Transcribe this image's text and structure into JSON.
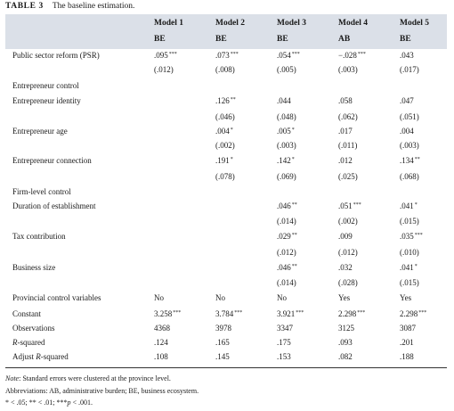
{
  "table": {
    "number": "TABLE 3",
    "title": "The baseline estimation.",
    "models": [
      "Model 1",
      "Model 2",
      "Model 3",
      "Model 4",
      "Model 5"
    ],
    "dep_vars": [
      "BE",
      "BE",
      "BE",
      "AB",
      "BE"
    ],
    "rows": [
      {
        "label": "Public sector reform (PSR)",
        "coef": [
          ".095",
          ".073",
          ".054",
          "−.028",
          ".043"
        ],
        "stars": [
          "***",
          "***",
          "***",
          "***",
          ""
        ],
        "se": [
          "(.012)",
          "(.008)",
          "(.005)",
          "(.003)",
          "(.017)"
        ]
      },
      {
        "label": "Entrepreneur control"
      },
      {
        "label": "Entrepreneur identity",
        "coef": [
          "",
          ".126",
          ".044",
          ".058",
          ".047"
        ],
        "stars": [
          "",
          "**",
          "",
          "",
          ""
        ],
        "se": [
          "",
          "(.046)",
          "(.048)",
          "(.062)",
          "(.051)"
        ]
      },
      {
        "label": "Entrepreneur age",
        "coef": [
          "",
          ".004",
          ".005",
          ".017",
          ".004"
        ],
        "stars": [
          "",
          "*",
          "*",
          "",
          ""
        ],
        "se": [
          "",
          "(.002)",
          "(.003)",
          "(.011)",
          "(.003)"
        ]
      },
      {
        "label": "Entrepreneur connection",
        "coef": [
          "",
          ".191",
          ".142",
          ".012",
          ".134"
        ],
        "stars": [
          "",
          "*",
          "*",
          "",
          "**"
        ],
        "se": [
          "",
          "(.078)",
          "(.069)",
          "(.025)",
          "(.068)"
        ]
      },
      {
        "label": "Firm-level control"
      },
      {
        "label": "Duration of establishment",
        "coef": [
          "",
          "",
          ".046",
          ".051",
          ".041"
        ],
        "stars": [
          "",
          "",
          "**",
          "***",
          "*"
        ],
        "se": [
          "",
          "",
          "(.014)",
          "(.002)",
          "(.015)"
        ]
      },
      {
        "label": "Tax contribution",
        "coef": [
          "",
          "",
          ".029",
          ".009",
          ".035"
        ],
        "stars": [
          "",
          "",
          "**",
          "",
          "***"
        ],
        "se": [
          "",
          "",
          "(.012)",
          "(.012)",
          "(.010)"
        ]
      },
      {
        "label": "Business size",
        "coef": [
          "",
          "",
          ".046",
          ".032",
          ".041"
        ],
        "stars": [
          "",
          "",
          "**",
          "",
          "*"
        ],
        "se": [
          "",
          "",
          "(.014)",
          "(.028)",
          "(.015)"
        ]
      },
      {
        "label": "Provincial control variables",
        "coef": [
          "No",
          "No",
          "No",
          "Yes",
          "Yes"
        ],
        "stars": [
          "",
          "",
          "",
          "",
          ""
        ]
      },
      {
        "label": "Constant",
        "coef": [
          "3.258",
          "3.784",
          "3.921",
          "2.298",
          "2.298"
        ],
        "stars": [
          "***",
          "***",
          "***",
          "***",
          "***"
        ]
      },
      {
        "label": "Observations",
        "coef": [
          "4368",
          "3978",
          "3347",
          "3125",
          "3087"
        ],
        "stars": [
          "",
          "",
          "",
          "",
          ""
        ]
      },
      {
        "label": "R-squared",
        "label_italic": "R",
        "label_rest": "-squared",
        "coef": [
          ".124",
          ".165",
          ".175",
          ".093",
          ".201"
        ],
        "stars": [
          "",
          "",
          "",
          "",
          ""
        ]
      },
      {
        "label": "Adjust R-squared",
        "label_pre": "Adjust ",
        "label_italic": "R",
        "label_rest": "-squared",
        "coef": [
          ".108",
          ".145",
          ".153",
          ".082",
          ".188"
        ],
        "stars": [
          "",
          "",
          "",
          "",
          ""
        ]
      }
    ],
    "notes": {
      "note_label": "Note",
      "note_text": ": Standard errors were clustered at the province level.",
      "abbreviations": "Abbreviations: AB, administrative burden; BE, business ecosystem.",
      "significance_prefix": "* < .05; ** < .01; ***",
      "significance_p": "p",
      "significance_suffix": " < .001."
    }
  }
}
